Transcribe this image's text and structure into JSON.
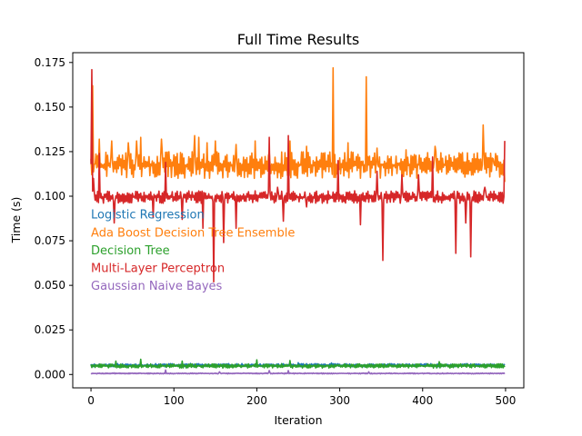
{
  "chart_data": {
    "type": "line",
    "title": "Full Time Results",
    "xlabel": "Iteration",
    "ylabel": "Time (s)",
    "xlim": [
      -22,
      522
    ],
    "ylim": [
      -0.0075,
      0.1805
    ],
    "xticks": [
      0,
      100,
      200,
      300,
      400,
      500
    ],
    "xtick_labels": [
      "0",
      "100",
      "200",
      "300",
      "400",
      "500"
    ],
    "yticks": [
      0.0,
      0.025,
      0.05,
      0.075,
      0.1,
      0.125,
      0.15,
      0.175
    ],
    "ytick_labels": [
      "0.000",
      "0.025",
      "0.050",
      "0.075",
      "0.100",
      "0.125",
      "0.150",
      "0.175"
    ],
    "grid": false,
    "n_points": 500,
    "annotations": [
      {
        "text": "Logistic Regression",
        "x": 0,
        "y": 0.09,
        "color": "#1f77b4"
      },
      {
        "text": "Ada Boost Decision Tree Ensemble",
        "x": 0,
        "y": 0.08,
        "color": "#ff7f0e"
      },
      {
        "text": "Decision Tree",
        "x": 0,
        "y": 0.07,
        "color": "#2ca02c"
      },
      {
        "text": "Multi-Layer Perceptron",
        "x": 0,
        "y": 0.06,
        "color": "#d62728"
      },
      {
        "text": "Gaussian Naive Bayes",
        "x": 0,
        "y": 0.05,
        "color": "#9467bd"
      }
    ],
    "series": [
      {
        "color": "#1f77b4",
        "base": 0.0052,
        "noise": 0.0009,
        "seed": 11,
        "spikes": [
          [
            0,
            0.0058
          ],
          [
            120,
            0.0062
          ],
          [
            250,
            0.0066
          ],
          [
            290,
            0.0065
          ]
        ]
      },
      {
        "color": "#ff7f0e",
        "base": 0.1175,
        "noise": 0.0075,
        "seed": 22,
        "spikes": [
          [
            0,
            0.121
          ],
          [
            2,
            0.162
          ],
          [
            5,
            0.118
          ],
          [
            10,
            0.132
          ],
          [
            25,
            0.131
          ],
          [
            45,
            0.13
          ],
          [
            55,
            0.131
          ],
          [
            60,
            0.133
          ],
          [
            85,
            0.132
          ],
          [
            125,
            0.134
          ],
          [
            130,
            0.133
          ],
          [
            140,
            0.13
          ],
          [
            150,
            0.131
          ],
          [
            175,
            0.129
          ],
          [
            198,
            0.131
          ],
          [
            215,
            0.125
          ],
          [
            240,
            0.131
          ],
          [
            260,
            0.128
          ],
          [
            292,
            0.172
          ],
          [
            310,
            0.13
          ],
          [
            332,
            0.167
          ],
          [
            345,
            0.127
          ],
          [
            360,
            0.121
          ],
          [
            380,
            0.126
          ],
          [
            415,
            0.128
          ],
          [
            430,
            0.12
          ],
          [
            473,
            0.14
          ],
          [
            485,
            0.121
          ],
          [
            499,
            0.108
          ]
        ]
      },
      {
        "color": "#2ca02c",
        "base": 0.0048,
        "noise": 0.0012,
        "seed": 33,
        "spikes": [
          [
            0,
            0.0055
          ],
          [
            30,
            0.0075
          ],
          [
            60,
            0.0085
          ],
          [
            110,
            0.0075
          ],
          [
            200,
            0.0082
          ],
          [
            240,
            0.0078
          ],
          [
            420,
            0.0072
          ]
        ]
      },
      {
        "color": "#d62728",
        "base": 0.0995,
        "noise": 0.0035,
        "seed": 44,
        "spikes": [
          [
            0,
            0.118
          ],
          [
            1,
            0.171
          ],
          [
            3,
            0.11
          ],
          [
            7,
            0.097
          ],
          [
            10,
            0.124
          ],
          [
            28,
            0.085
          ],
          [
            75,
            0.088
          ],
          [
            90,
            0.119
          ],
          [
            110,
            0.087
          ],
          [
            135,
            0.082
          ],
          [
            148,
            0.052
          ],
          [
            160,
            0.074
          ],
          [
            175,
            0.082
          ],
          [
            198,
            0.103
          ],
          [
            215,
            0.133
          ],
          [
            225,
            0.105
          ],
          [
            232,
            0.086
          ],
          [
            238,
            0.134
          ],
          [
            260,
            0.094
          ],
          [
            298,
            0.12
          ],
          [
            325,
            0.084
          ],
          [
            345,
            0.114
          ],
          [
            352,
            0.064
          ],
          [
            375,
            0.112
          ],
          [
            395,
            0.112
          ],
          [
            412,
            0.122
          ],
          [
            440,
            0.068
          ],
          [
            452,
            0.085
          ],
          [
            458,
            0.066
          ],
          [
            475,
            0.105
          ],
          [
            495,
            0.097
          ],
          [
            499,
            0.131
          ]
        ]
      },
      {
        "color": "#9467bd",
        "base": 0.0006,
        "noise": 0.0003,
        "seed": 55,
        "spikes": [
          [
            90,
            0.0025
          ],
          [
            155,
            0.0015
          ],
          [
            215,
            0.0022
          ],
          [
            238,
            0.0022
          ],
          [
            335,
            0.0015
          ]
        ]
      }
    ]
  }
}
